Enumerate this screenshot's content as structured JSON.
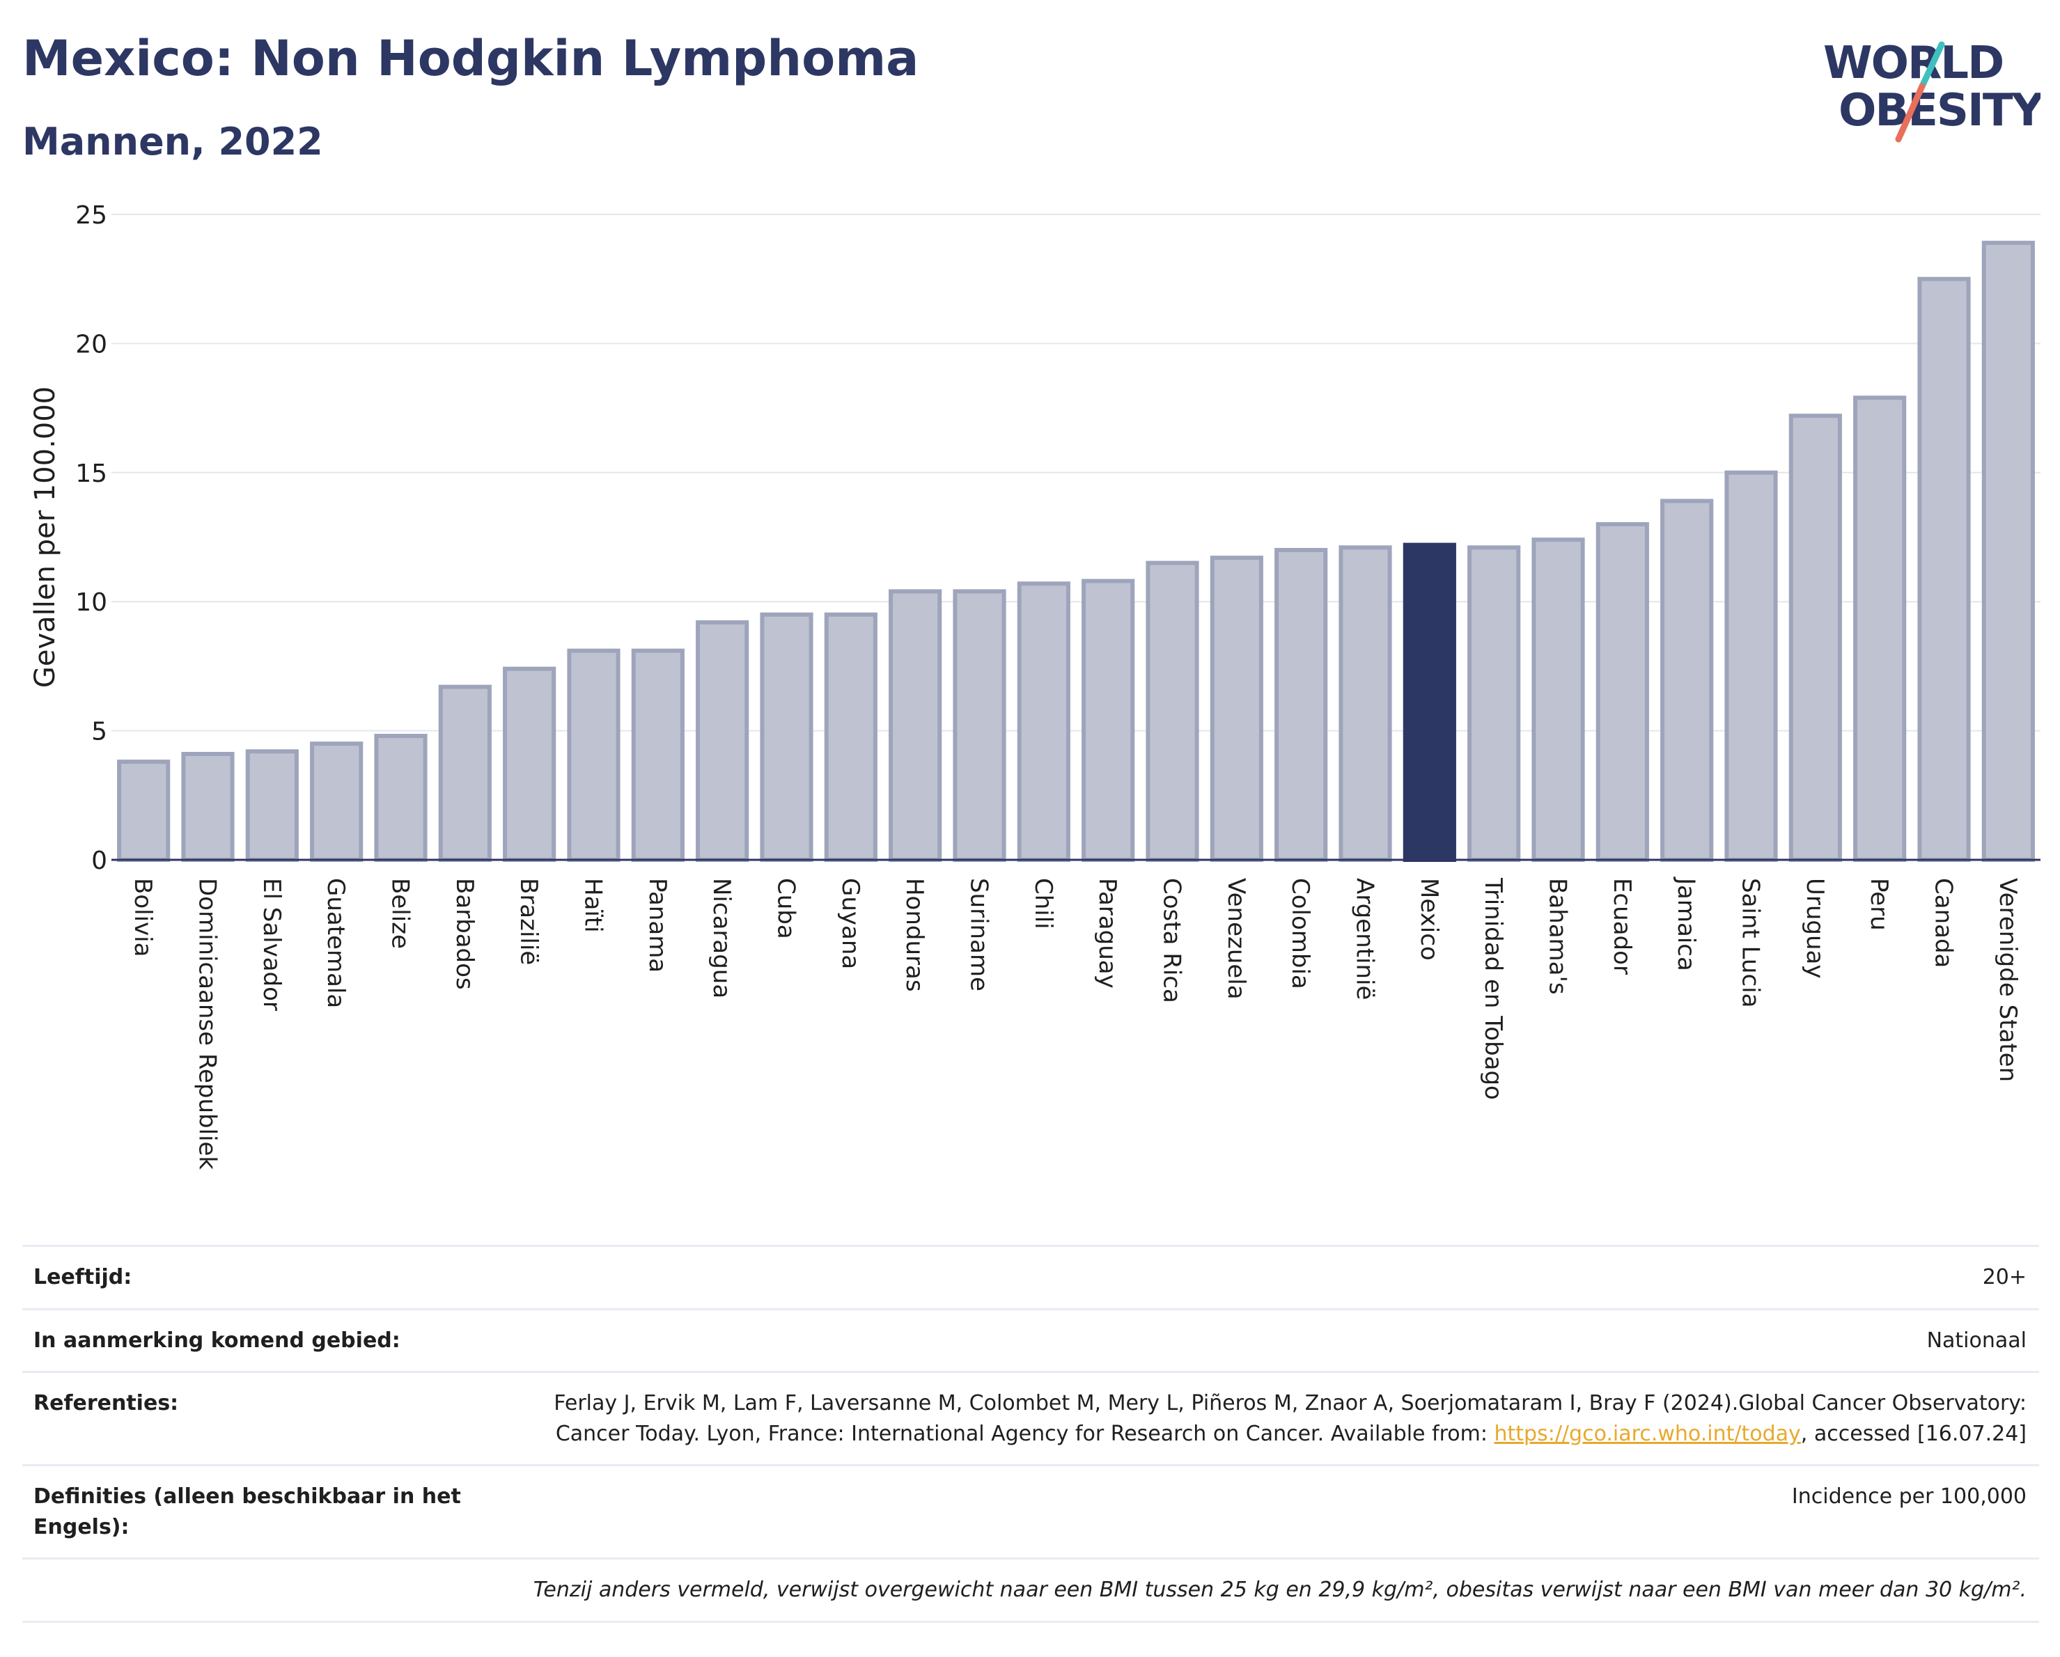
{
  "header": {
    "title": "Mexico: Non Hodgkin Lymphoma",
    "subtitle": "Mannen, 2022"
  },
  "logo": {
    "line1": "WORLD",
    "line2": "OBESITY",
    "colors": {
      "text": "#2d3763",
      "slash_top": "#3fbfbf",
      "slash_bottom": "#e8705a"
    }
  },
  "chart_data": {
    "type": "bar",
    "ylabel": "Gevallen per 100.000",
    "ylim": [
      0,
      25
    ],
    "yticks": [
      0,
      5,
      10,
      15,
      20,
      25
    ],
    "grid": true,
    "highlight": "Mexico",
    "colors": {
      "bar": "#bfc3d1",
      "bar_border": "#9ea4bb",
      "highlight": "#2d3763"
    },
    "categories": [
      "Bolivia",
      "Dominicaanse Republiek",
      "El Salvador",
      "Guatemala",
      "Belize",
      "Barbados",
      "Brazilië",
      "Haïti",
      "Panama",
      "Nicaragua",
      "Cuba",
      "Guyana",
      "Honduras",
      "Suriname",
      "Chili",
      "Paraguay",
      "Costa Rica",
      "Venezuela",
      "Colombia",
      "Argentinië",
      "Mexico",
      "Trinidad en Tobago",
      "Bahama's",
      "Ecuador",
      "Jamaica",
      "Saint Lucia",
      "Uruguay",
      "Peru",
      "Canada",
      "Verenigde Staten"
    ],
    "values": [
      3.8,
      4.1,
      4.2,
      4.5,
      4.8,
      6.7,
      7.4,
      8.1,
      8.1,
      9.2,
      9.5,
      9.5,
      10.4,
      10.4,
      10.7,
      10.8,
      11.5,
      11.7,
      12.0,
      12.1,
      12.2,
      12.1,
      12.4,
      13.0,
      13.9,
      15.0,
      17.2,
      17.9,
      22.5,
      23.9
    ]
  },
  "info": {
    "age_label": "Leeftijd:",
    "age_value": "20+",
    "area_label": "In aanmerking komend gebied:",
    "area_value": "Nationaal",
    "ref_label": "Referenties:",
    "ref_text1": "Ferlay J, Ervik M, Lam F, Laversanne M, Colombet M, Mery L, Piñeros M, Znaor A, Soerjomataram I, Bray F (2024).Global Cancer Observatory: Cancer Today. Lyon, France: International Agency for Research on Cancer. Available from: ",
    "ref_link": "https://gco.iarc.who.int/today",
    "ref_text2": ", accessed [16.07.24]",
    "def_label": "Definities (alleen beschikbaar in het Engels):",
    "def_value": "Incidence per 100,000",
    "note": "Tenzij anders vermeld, verwijst overgewicht naar een BMI tussen 25 kg en 29,9 kg/m², obesitas verwijst naar een BMI van meer dan 30 kg/m²."
  }
}
